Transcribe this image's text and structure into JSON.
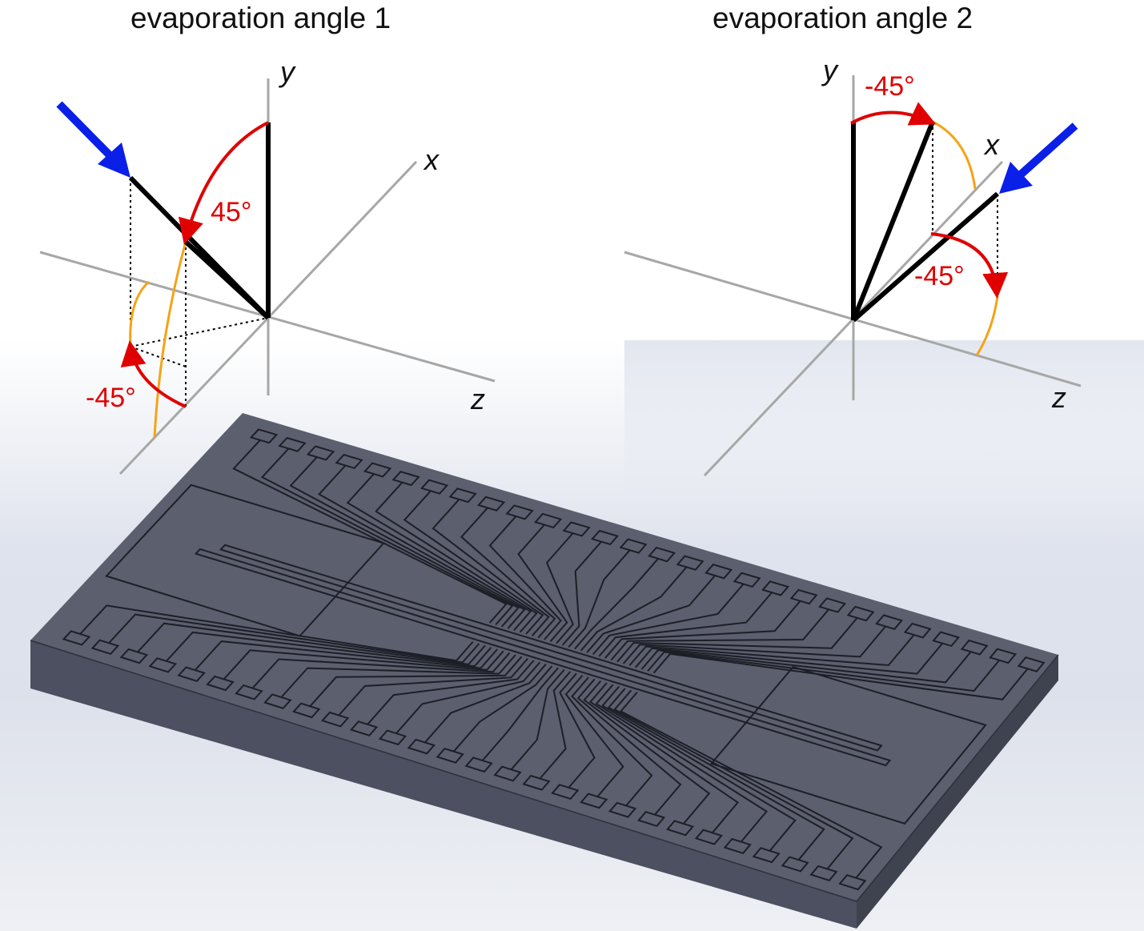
{
  "panel_left": {
    "title": "evaporation angle 1",
    "axis_y": "y",
    "axis_x": "x",
    "axis_z": "z",
    "angle_upper": "45°",
    "angle_lower": "-45°"
  },
  "panel_right": {
    "title": "evaporation angle 2",
    "axis_y": "y",
    "axis_x": "x",
    "axis_z": "z",
    "angle_upper": "-45°",
    "angle_lower": "-45°"
  },
  "colors": {
    "beam_arrow": "#0a1fe8",
    "angle_arc": "#e00000",
    "projection_arc": "#f5a316",
    "axis": "#a7a7a7",
    "vector": "#000000",
    "chip_top": "#5b5f6e",
    "chip_front": "#4c5060",
    "chip_side": "#3f4350"
  },
  "icons": {
    "beam": "evaporation-beam-arrow-icon"
  }
}
